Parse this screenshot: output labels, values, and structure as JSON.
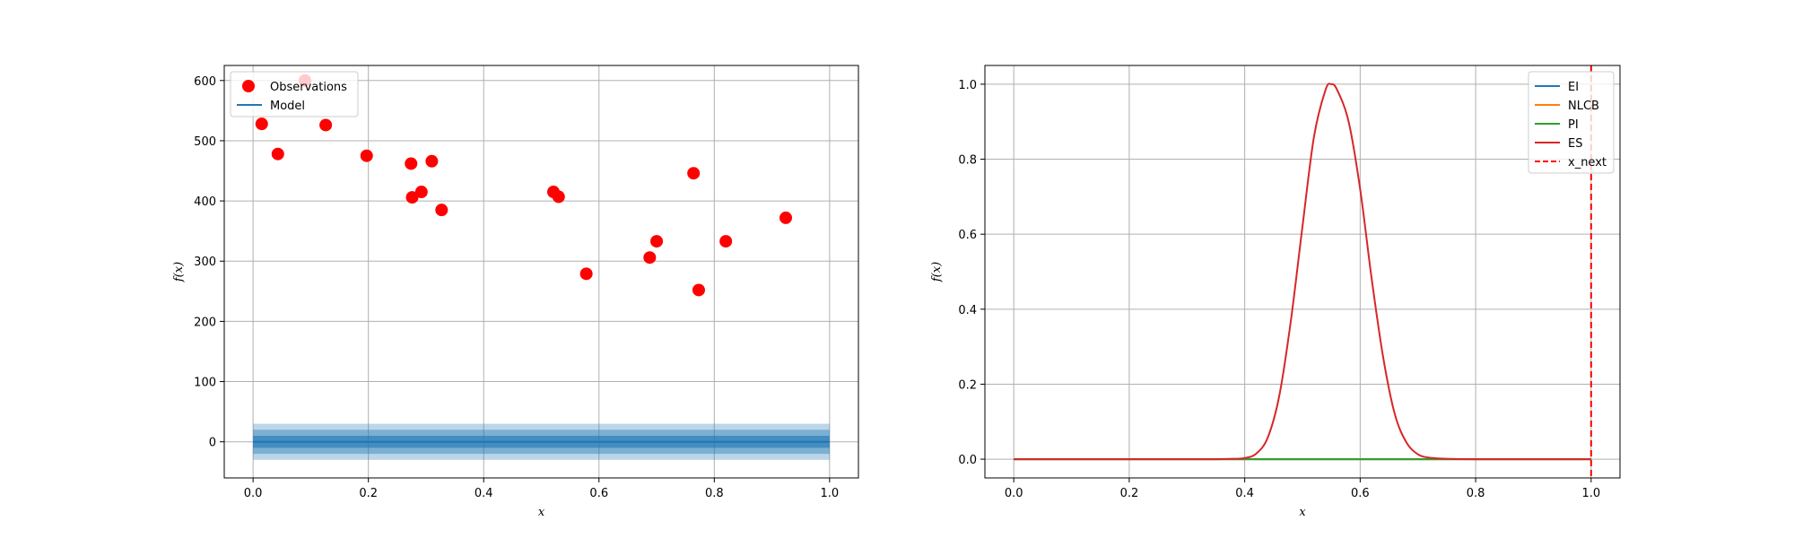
{
  "chart_data": [
    {
      "type": "scatter",
      "title": "",
      "xlabel": "x",
      "ylabel": "f(x)",
      "xlim": [
        -0.05,
        1.05
      ],
      "ylim": [
        -60,
        625
      ],
      "xticks": [
        0.0,
        0.2,
        0.4,
        0.6,
        0.8,
        1.0
      ],
      "xtick_labels": [
        "0.0",
        "0.2",
        "0.4",
        "0.6",
        "0.8",
        "1.0"
      ],
      "yticks": [
        0,
        100,
        200,
        300,
        400,
        500,
        600
      ],
      "ytick_labels": [
        "0",
        "100",
        "200",
        "300",
        "400",
        "500",
        "600"
      ],
      "grid": true,
      "legend": {
        "position": "top-left",
        "entries": [
          {
            "label": "Observations",
            "kind": "marker",
            "color": "#ff0000"
          },
          {
            "label": "Model",
            "kind": "line",
            "color": "#1f77b4"
          }
        ]
      },
      "series": [
        {
          "name": "Observations",
          "kind": "scatter",
          "color": "#ff0000",
          "x": [
            0.015,
            0.043,
            0.09,
            0.126,
            0.197,
            0.274,
            0.276,
            0.292,
            0.31,
            0.327,
            0.521,
            0.53,
            0.578,
            0.688,
            0.7,
            0.764,
            0.773,
            0.82,
            0.924
          ],
          "y": [
            528,
            478,
            600,
            526,
            475,
            462,
            406,
            415,
            466,
            385,
            415,
            407,
            279,
            306,
            333,
            446,
            252,
            333,
            372
          ]
        },
        {
          "name": "Model",
          "kind": "line",
          "color": "#1f77b4",
          "x": [
            0.0,
            1.0
          ],
          "y": [
            0,
            0
          ],
          "bands": [
            {
              "half_width": 10,
              "alpha": 0.6
            },
            {
              "half_width": 20,
              "alpha": 0.4
            },
            {
              "half_width": 30,
              "alpha": 0.3
            }
          ]
        }
      ]
    },
    {
      "type": "line",
      "title": "",
      "xlabel": "x",
      "ylabel": "f(x)",
      "xlim": [
        -0.05,
        1.05
      ],
      "ylim": [
        -0.05,
        1.05
      ],
      "xticks": [
        0.0,
        0.2,
        0.4,
        0.6,
        0.8,
        1.0
      ],
      "xtick_labels": [
        "0.0",
        "0.2",
        "0.4",
        "0.6",
        "0.8",
        "1.0"
      ],
      "yticks": [
        0.0,
        0.2,
        0.4,
        0.6,
        0.8,
        1.0
      ],
      "ytick_labels": [
        "0.0",
        "0.2",
        "0.4",
        "0.6",
        "0.8",
        "1.0"
      ],
      "grid": true,
      "legend": {
        "position": "top-right",
        "entries": [
          {
            "label": "EI",
            "kind": "line",
            "color": "#1f77b4"
          },
          {
            "label": "NLCB",
            "kind": "line",
            "color": "#ff7f0e"
          },
          {
            "label": "PI",
            "kind": "line",
            "color": "#2ca02c"
          },
          {
            "label": "ES",
            "kind": "line",
            "color": "#d62728"
          },
          {
            "label": "x_next",
            "kind": "dashed",
            "color": "#ff0000"
          }
        ]
      },
      "series": [
        {
          "name": "EI",
          "color": "#1f77b4",
          "x": [
            0.0,
            1.0
          ],
          "y": [
            0,
            0
          ]
        },
        {
          "name": "NLCB",
          "color": "#ff7f0e",
          "x": [
            0.0,
            1.0
          ],
          "y": [
            0,
            0
          ]
        },
        {
          "name": "PI",
          "color": "#2ca02c",
          "x": [
            0.0,
            1.0
          ],
          "y": [
            0,
            0
          ]
        },
        {
          "name": "ES",
          "color": "#d62728",
          "x": [
            0.0,
            0.1,
            0.2,
            0.3,
            0.35,
            0.38,
            0.4,
            0.42,
            0.44,
            0.46,
            0.48,
            0.5,
            0.52,
            0.54,
            0.55,
            0.56,
            0.58,
            0.6,
            0.62,
            0.64,
            0.66,
            0.68,
            0.7,
            0.72,
            0.75,
            0.8,
            0.9,
            1.0
          ],
          "y": [
            0,
            0,
            0,
            0,
            0,
            0.001,
            0.003,
            0.015,
            0.058,
            0.17,
            0.37,
            0.62,
            0.86,
            0.985,
            1.0,
            0.985,
            0.9,
            0.72,
            0.48,
            0.27,
            0.12,
            0.045,
            0.013,
            0.004,
            0.001,
            0,
            0,
            0
          ]
        },
        {
          "name": "x_next",
          "kind": "vline",
          "color": "#ff0000",
          "x": 1.0
        }
      ]
    }
  ]
}
